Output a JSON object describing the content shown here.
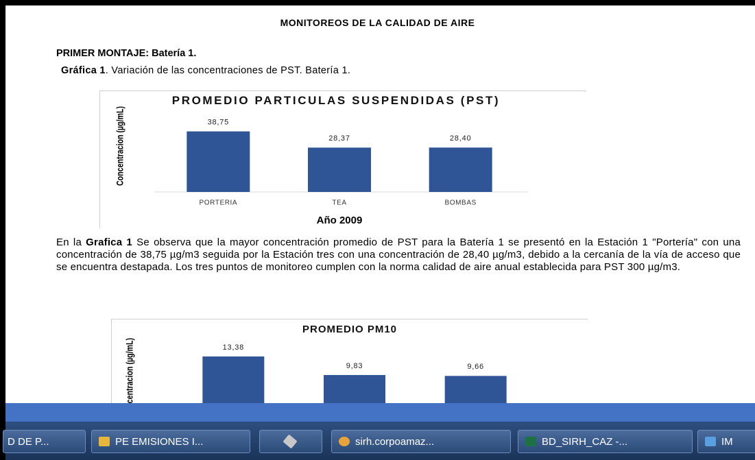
{
  "document": {
    "heading": "MONITOREOS DE LA CALIDAD DE AIRE",
    "section": "PRIMER MONTAJE: Batería 1.",
    "caption": {
      "label": "Gráfica 1",
      "text": ". Variación de las concentraciones de PST. Batería 1."
    },
    "paragraph": {
      "lead": "En la ",
      "bold": "Grafica 1",
      "text": " Se observa que la mayor concentración promedio de PST para la Batería 1 se presentó en la Estación 1 \"Portería\" con una concentración de 38,75 µg/m3 seguida por la Estación tres con una concentración de 28,40 µg/m3, debido a la cercanía de la vía de acceso que se encuentra destapada. Los tres puntos de monitoreo cumplen con la norma calidad de aire anual establecida para PST 300 µg/m3."
    }
  },
  "chart_data": [
    {
      "type": "bar",
      "title": "PROMEDIO PARTICULAS SUSPENDIDAS (PST)",
      "y_label": "Concentracion (µg/mL)",
      "x_label": "Año 2009",
      "categories": [
        "PORTERIA",
        "TEA",
        "BOMBAS"
      ],
      "values": [
        38.75,
        28.37,
        28.4
      ],
      "value_labels": [
        "38,75",
        "28,37",
        "28,40"
      ],
      "color": "#2f5597",
      "ylim": [
        0,
        50
      ]
    },
    {
      "type": "bar",
      "title": "PROMEDIO PM10",
      "y_label": "Concentracion (µg/mL)",
      "values": [
        13.38,
        9.83,
        9.66
      ],
      "value_labels": [
        "13,38",
        "9,83",
        "9,66"
      ],
      "color": "#2f5597",
      "ylim": [
        0,
        16
      ]
    }
  ],
  "taskbar": {
    "items": [
      "D DE P...",
      "PE EMISIONES I...",
      "sirh.corpoamaz...",
      "BD_SIRH_CAZ -...",
      "IM"
    ]
  }
}
